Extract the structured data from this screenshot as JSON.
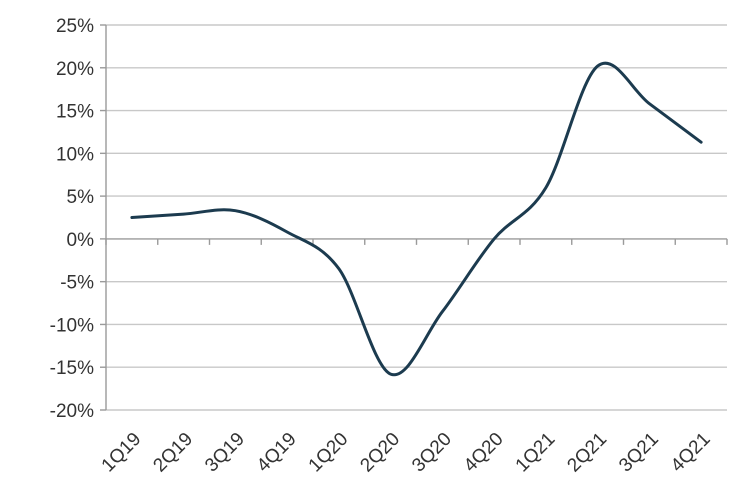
{
  "chart_data": {
    "type": "line",
    "title": "",
    "xlabel": "",
    "ylabel": "",
    "categories": [
      "1Q19",
      "2Q19",
      "3Q19",
      "4Q19",
      "1Q20",
      "2Q20",
      "3Q20",
      "4Q20",
      "1Q21",
      "2Q21",
      "3Q21",
      "4Q21"
    ],
    "y_tick_labels": [
      "25%",
      "20%",
      "15%",
      "10%",
      "5%",
      "0%",
      "-5%",
      "-10%",
      "-15%",
      "-20%"
    ],
    "y_ticks": [
      25,
      20,
      15,
      10,
      5,
      0,
      -5,
      -10,
      -15,
      -20
    ],
    "ylim": [
      -20,
      25
    ],
    "unit": "%",
    "grid": true,
    "legend": "none",
    "series": [
      {
        "values": [
          2.5,
          2.9,
          3.3,
          0.8,
          -3.5,
          -15.8,
          -8.5,
          0.0,
          6.0,
          20.2,
          15.8,
          11.3
        ]
      }
    ],
    "colors": {
      "line": "#1c3b4f",
      "grid": "#c8c8c8",
      "axis": "#9a9a9a",
      "text": "#333333"
    }
  }
}
